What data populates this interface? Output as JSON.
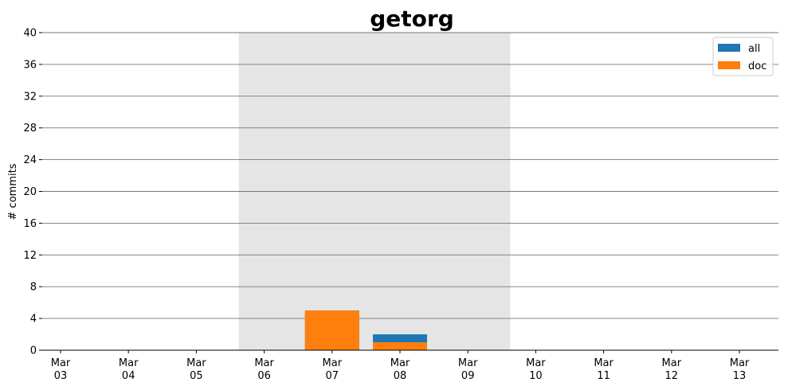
{
  "chart_data": {
    "type": "bar",
    "title": "getorg",
    "xlabel": "",
    "ylabel": "# commits",
    "ylim": [
      0,
      40
    ],
    "yticks": [
      "0",
      "4",
      "8",
      "12",
      "16",
      "20",
      "24",
      "28",
      "32",
      "36",
      "40"
    ],
    "grid": "horizontal",
    "legend_position": "top-right",
    "categories": [
      "2020-03-03",
      "2020-03-04",
      "2020-03-05",
      "2020-03-06",
      "2020-03-07",
      "2020-03-08",
      "2020-03-09",
      "2020-03-10",
      "2020-03-11",
      "2020-03-12",
      "2020-03-13"
    ],
    "x_tick_labels": [
      {
        "month": "Mar",
        "day": "03"
      },
      {
        "month": "Mar",
        "day": "04"
      },
      {
        "month": "Mar",
        "day": "05"
      },
      {
        "month": "Mar",
        "day": "06"
      },
      {
        "month": "Mar",
        "day": "07"
      },
      {
        "month": "Mar",
        "day": "08"
      },
      {
        "month": "Mar",
        "day": "09"
      },
      {
        "month": "Mar",
        "day": "10"
      },
      {
        "month": "Mar",
        "day": "11"
      },
      {
        "month": "Mar",
        "day": "12"
      },
      {
        "month": "Mar",
        "day": "13"
      }
    ],
    "highlight_span": {
      "start": "2020-03-05T15:00",
      "end": "2020-03-09T15:00",
      "color": "#e5e5e5"
    },
    "series": [
      {
        "name": "all",
        "color": "#1f77b4",
        "bars": [
          {
            "x": "2020-03-07",
            "y": 5
          },
          {
            "x": "2020-03-08",
            "y": 2
          }
        ]
      },
      {
        "name": "doc",
        "color": "#ff7f0e",
        "bars": [
          {
            "x": "2020-03-07",
            "y": 5
          },
          {
            "x": "2020-03-08",
            "y": 1
          }
        ]
      }
    ]
  }
}
